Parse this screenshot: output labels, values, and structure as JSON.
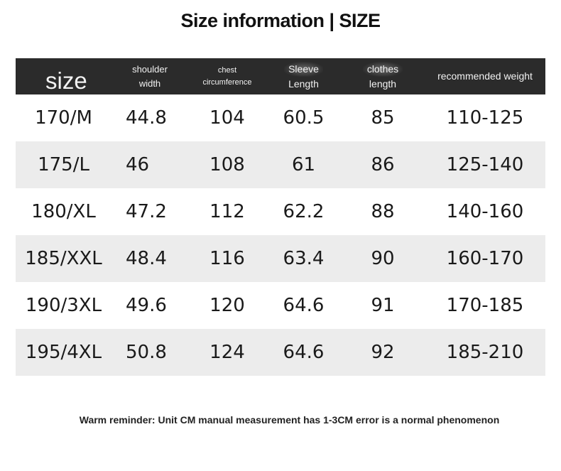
{
  "title": "Size information | SIZE",
  "headers": {
    "size": "size",
    "shoulder_line1": "shoulder",
    "shoulder_line2": "width",
    "chest_line1": "chest",
    "chest_line2": "circumference",
    "sleeve_line1": "Sleeve",
    "sleeve_line2": "Length",
    "clothes_line1": "clothes",
    "clothes_line2": "length",
    "weight": "recommended weight"
  },
  "rows": [
    {
      "size": "170/M",
      "shoulder": "44.8",
      "chest": "104",
      "sleeve": "60.5",
      "length": "85",
      "weight": "110-125"
    },
    {
      "size": "175/L",
      "shoulder": "46",
      "chest": "108",
      "sleeve": "61",
      "length": "86",
      "weight": "125-140"
    },
    {
      "size": "180/XL",
      "shoulder": "47.2",
      "chest": "112",
      "sleeve": "62.2",
      "length": "88",
      "weight": "140-160"
    },
    {
      "size": "185/XXL",
      "shoulder": "48.4",
      "chest": "116",
      "sleeve": "63.4",
      "length": "90",
      "weight": "160-170"
    },
    {
      "size": "190/3XL",
      "shoulder": "49.6",
      "chest": "120",
      "sleeve": "64.6",
      "length": "91",
      "weight": "170-185"
    },
    {
      "size": "195/4XL",
      "shoulder": "50.8",
      "chest": "124",
      "sleeve": "64.6",
      "length": "92",
      "weight": "185-210"
    }
  ],
  "note": "Warm reminder: Unit CM manual measurement has 1-3CM error is a normal phenomenon",
  "colors": {
    "header_bg": "#2b2b2b",
    "stripe_bg": "#ececec",
    "text": "#111111"
  }
}
